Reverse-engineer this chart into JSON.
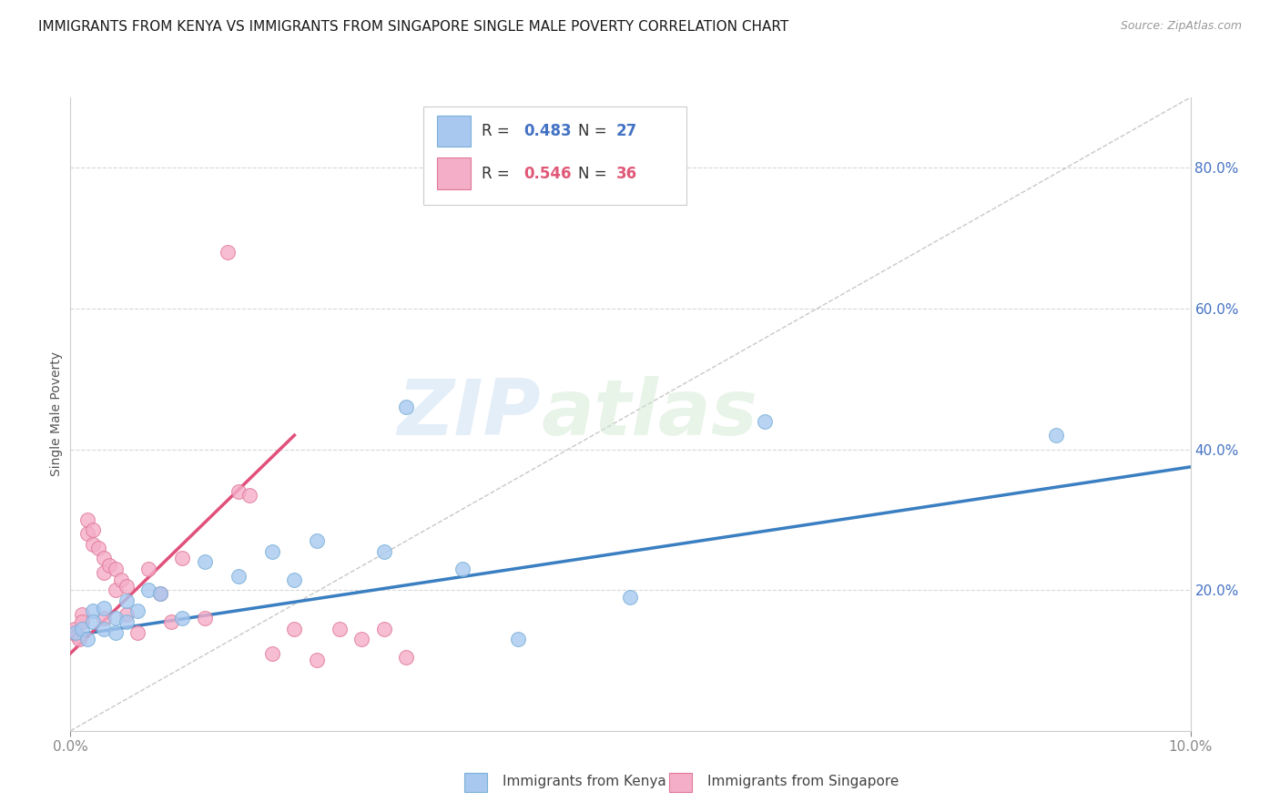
{
  "title": "IMMIGRANTS FROM KENYA VS IMMIGRANTS FROM SINGAPORE SINGLE MALE POVERTY CORRELATION CHART",
  "source": "Source: ZipAtlas.com",
  "ylabel": "Single Male Poverty",
  "xlim": [
    0.0,
    0.1
  ],
  "ylim": [
    0.0,
    0.9
  ],
  "xtick_positions": [
    0.0,
    0.1
  ],
  "xtick_labels": [
    "0.0%",
    "10.0%"
  ],
  "yticks_right": [
    0.2,
    0.4,
    0.6,
    0.8
  ],
  "ytick_labels_right": [
    "20.0%",
    "40.0%",
    "60.0%",
    "80.0%"
  ],
  "kenya_color": "#a8c8f0",
  "kenya_edge": "#7ab0d8",
  "singapore_color": "#f5aec8",
  "singapore_edge": "#e07898",
  "kenya_line_color": "#3a7fc1",
  "singapore_line_color": "#e0507a",
  "diag_line_color": "#c8c8c8",
  "kenya_R": 0.483,
  "kenya_N": 27,
  "singapore_R": 0.546,
  "singapore_N": 36,
  "kenya_scatter_x": [
    0.0005,
    0.001,
    0.0015,
    0.002,
    0.002,
    0.003,
    0.003,
    0.004,
    0.004,
    0.005,
    0.005,
    0.006,
    0.007,
    0.008,
    0.01,
    0.012,
    0.015,
    0.018,
    0.02,
    0.022,
    0.028,
    0.03,
    0.035,
    0.04,
    0.05,
    0.062,
    0.088
  ],
  "kenya_scatter_y": [
    0.14,
    0.145,
    0.13,
    0.17,
    0.155,
    0.175,
    0.145,
    0.16,
    0.14,
    0.185,
    0.155,
    0.17,
    0.2,
    0.195,
    0.16,
    0.24,
    0.22,
    0.255,
    0.215,
    0.27,
    0.255,
    0.46,
    0.23,
    0.13,
    0.19,
    0.44,
    0.42
  ],
  "singapore_scatter_x": [
    0.0002,
    0.0004,
    0.0006,
    0.0008,
    0.001,
    0.001,
    0.0015,
    0.0015,
    0.002,
    0.002,
    0.0025,
    0.003,
    0.003,
    0.003,
    0.0035,
    0.004,
    0.004,
    0.0045,
    0.005,
    0.005,
    0.006,
    0.007,
    0.008,
    0.009,
    0.01,
    0.012,
    0.014,
    0.015,
    0.016,
    0.018,
    0.02,
    0.022,
    0.024,
    0.026,
    0.028,
    0.03
  ],
  "singapore_scatter_y": [
    0.14,
    0.145,
    0.135,
    0.13,
    0.165,
    0.155,
    0.3,
    0.28,
    0.285,
    0.265,
    0.26,
    0.245,
    0.225,
    0.16,
    0.235,
    0.23,
    0.2,
    0.215,
    0.205,
    0.165,
    0.14,
    0.23,
    0.195,
    0.155,
    0.245,
    0.16,
    0.68,
    0.34,
    0.335,
    0.11,
    0.145,
    0.1,
    0.145,
    0.13,
    0.145,
    0.105
  ],
  "kenya_trend_x": [
    0.0,
    0.1
  ],
  "kenya_trend_y": [
    0.135,
    0.375
  ],
  "singapore_trend_x": [
    0.0,
    0.02
  ],
  "singapore_trend_y": [
    0.11,
    0.42
  ],
  "diag_line_x": [
    0.0,
    0.1
  ],
  "diag_line_y": [
    0.0,
    0.9
  ],
  "watermark_zip": "ZIP",
  "watermark_atlas": "atlas",
  "title_fontsize": 11,
  "axis_label_fontsize": 10,
  "tick_fontsize": 11,
  "right_tick_color": "#4472c4",
  "x_tick_color": "#888888",
  "background_color": "#ffffff",
  "grid_color": "#d8d8d8",
  "ylabel_color": "#555555",
  "legend_color_kenya": "#4472c4",
  "legend_color_singapore": "#e05878"
}
